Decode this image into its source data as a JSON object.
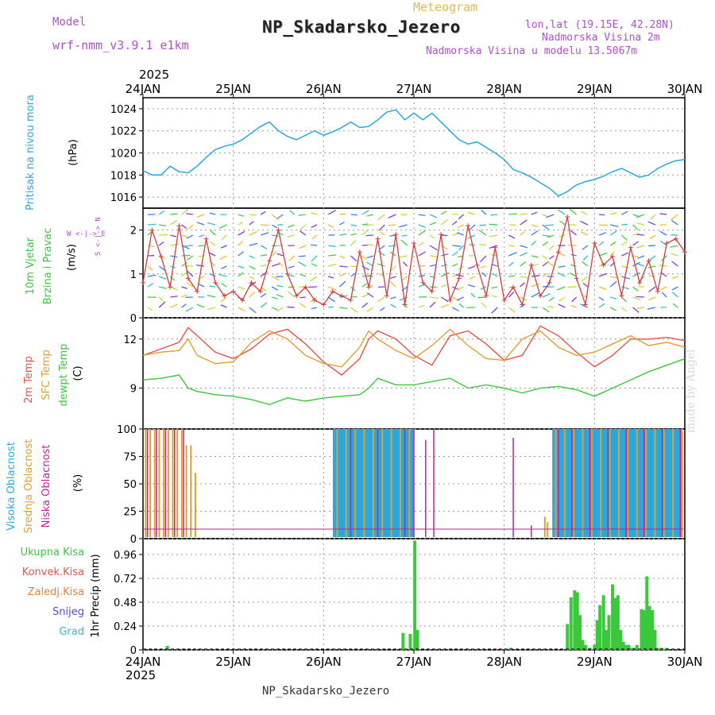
{
  "header": {
    "title": "NP_Skadarsko_Jezero",
    "subtitle": "Meteogram",
    "model_label": "Model",
    "model_value": "wrf-nmm_v3.9.1 e1km",
    "location_line1": "lon,lat (19.15E, 42.28N)",
    "location_line2": "Nadmorska Visina 2m",
    "location_line3": "Nadmorska Visina u modelu 13.5067m",
    "footer": "NP_Skadarsko_Jezero",
    "made_by": "made by Angel",
    "year": "2025"
  },
  "colors": {
    "pressure": "#29a8e0",
    "wind_speed": "#d93c3c",
    "temp2m": "#e8524a",
    "sfc_temp": "#e0a030",
    "dewpt": "#3cc83c",
    "cloud_high": "#29a8e0",
    "cloud_mid": "#e0a030",
    "cloud_low": "#c020a0",
    "precip_total": "#3cc83c",
    "precip_conv": "#e8524a",
    "precip_frozen": "#f08030",
    "snow": "#5050d0",
    "graupel": "#30c0c0",
    "label_purple": "#b04fd6"
  },
  "chart_data": [
    {
      "type": "line",
      "panel": "pressure",
      "ylabel_left": "Pritisak na nivou mora",
      "unit": "(hPa)",
      "ylim": [
        1015,
        1025
      ],
      "yticks": [
        "1016",
        "1018",
        "1020",
        "1022",
        "1024"
      ],
      "x_dates": [
        "24JAN",
        "25JAN",
        "26JAN",
        "27JAN",
        "28JAN",
        "29JAN",
        "30JAN"
      ],
      "x": [
        0,
        0.1,
        0.2,
        0.25,
        0.3,
        0.4,
        0.5,
        0.6,
        0.7,
        0.8,
        0.9,
        1.0,
        1.1,
        1.2,
        1.3,
        1.4,
        1.5,
        1.6,
        1.7,
        1.8,
        1.9,
        2.0,
        2.1,
        2.2,
        2.3,
        2.4,
        2.5,
        2.6,
        2.7,
        2.8,
        2.9,
        3.0,
        3.1,
        3.2,
        3.3,
        3.4,
        3.5,
        3.6,
        3.7,
        3.8,
        3.9,
        4.0,
        4.1,
        4.2,
        4.3,
        4.4,
        4.5,
        4.6,
        4.7,
        4.8,
        4.9,
        5.0,
        5.1,
        5.2,
        5.3,
        5.4,
        5.5,
        5.6,
        5.7,
        5.8,
        5.9,
        6.0
      ],
      "values": [
        1018.4,
        1018.0,
        1018.0,
        1018.4,
        1018.8,
        1018.3,
        1018.2,
        1018.8,
        1019.6,
        1020.3,
        1020.6,
        1020.8,
        1021.2,
        1021.8,
        1022.4,
        1022.8,
        1022.0,
        1021.5,
        1021.2,
        1021.6,
        1022.0,
        1021.6,
        1021.9,
        1022.3,
        1022.8,
        1022.3,
        1022.4,
        1023.0,
        1023.7,
        1023.9,
        1023.0,
        1023.6,
        1023.0,
        1023.6,
        1022.8,
        1022.0,
        1021.2,
        1020.8,
        1021.0,
        1020.5,
        1020.0,
        1019.4,
        1018.5,
        1018.2,
        1017.8,
        1017.3,
        1016.8,
        1016.1,
        1016.5,
        1017.1,
        1017.4,
        1017.6,
        1017.9,
        1018.3,
        1018.6,
        1018.2,
        1017.8,
        1018.0,
        1018.6,
        1019.0,
        1019.3,
        1019.4
      ]
    },
    {
      "type": "line",
      "panel": "wind",
      "ylabel_left": [
        "10m Vjetar",
        "Brzina i Pravac"
      ],
      "unit": "(m/s)",
      "compass_legend": "W <-|-> E",
      "compass_vertical": "S <-|-> N",
      "ylim": [
        0,
        2.5
      ],
      "yticks": [
        "0",
        "1",
        "2"
      ],
      "x": [
        0,
        0.1,
        0.2,
        0.3,
        0.4,
        0.5,
        0.6,
        0.7,
        0.8,
        0.9,
        1.0,
        1.1,
        1.2,
        1.3,
        1.4,
        1.5,
        1.6,
        1.7,
        1.8,
        1.9,
        2.0,
        2.1,
        2.2,
        2.3,
        2.4,
        2.5,
        2.6,
        2.7,
        2.8,
        2.9,
        3.0,
        3.1,
        3.2,
        3.3,
        3.4,
        3.5,
        3.6,
        3.7,
        3.8,
        3.9,
        4.0,
        4.1,
        4.2,
        4.3,
        4.4,
        4.5,
        4.6,
        4.7,
        4.8,
        4.9,
        5.0,
        5.1,
        5.2,
        5.3,
        5.4,
        5.5,
        5.6,
        5.7,
        5.8,
        5.9,
        6.0
      ],
      "values": [
        0.8,
        2.0,
        1.4,
        0.7,
        2.1,
        0.9,
        0.6,
        1.8,
        0.8,
        0.5,
        0.6,
        0.4,
        0.8,
        0.6,
        1.3,
        2.0,
        1.0,
        0.5,
        0.7,
        0.4,
        0.3,
        0.6,
        0.5,
        0.4,
        1.5,
        0.7,
        1.8,
        0.5,
        1.9,
        0.3,
        1.7,
        0.8,
        0.6,
        1.9,
        0.4,
        0.9,
        2.1,
        1.2,
        0.5,
        1.6,
        0.4,
        0.7,
        0.3,
        1.2,
        0.5,
        0.8,
        1.5,
        2.3,
        0.9,
        0.3,
        1.7,
        1.2,
        1.4,
        0.5,
        1.6,
        0.8,
        1.3,
        0.6,
        1.7,
        1.8,
        1.5
      ]
    },
    {
      "type": "line",
      "panel": "temperature",
      "ylabel_left": [
        "2m Temp",
        "SFC Temp",
        "dewpt Temp"
      ],
      "unit": "(C)",
      "ylim": [
        6.5,
        13.3
      ],
      "yticks": [
        "9",
        "12"
      ],
      "x": [
        0,
        0.2,
        0.4,
        0.5,
        0.6,
        0.8,
        1.0,
        1.2,
        1.4,
        1.6,
        1.8,
        2.0,
        2.2,
        2.4,
        2.5,
        2.6,
        2.8,
        3.0,
        3.2,
        3.4,
        3.6,
        3.8,
        4.0,
        4.2,
        4.4,
        4.6,
        4.8,
        5.0,
        5.2,
        5.4,
        5.6,
        5.8,
        6.0
      ],
      "series": [
        {
          "name": "2m Temp",
          "values": [
            11.0,
            11.4,
            11.8,
            12.7,
            12.2,
            11.2,
            10.8,
            11.4,
            12.3,
            12.6,
            11.7,
            10.6,
            9.8,
            10.8,
            12.0,
            12.5,
            12.0,
            11.0,
            10.4,
            12.2,
            12.5,
            11.7,
            10.7,
            11.0,
            12.8,
            12.2,
            11.2,
            10.3,
            11.0,
            12.0,
            12.0,
            12.1,
            11.9
          ]
        },
        {
          "name": "SFC Temp",
          "values": [
            11.0,
            11.2,
            11.3,
            12.0,
            11.0,
            10.5,
            10.6,
            11.8,
            12.5,
            12.0,
            11.0,
            10.5,
            10.3,
            11.5,
            12.5,
            12.0,
            11.3,
            10.8,
            11.6,
            12.6,
            11.6,
            10.8,
            10.7,
            12.0,
            12.5,
            11.5,
            11.0,
            11.2,
            11.7,
            12.2,
            11.6,
            11.8,
            11.5
          ]
        },
        {
          "name": "dewpt Temp",
          "values": [
            9.5,
            9.6,
            9.8,
            9.0,
            8.8,
            8.6,
            8.5,
            8.3,
            8.0,
            8.4,
            8.2,
            8.4,
            8.5,
            8.6,
            9.0,
            9.6,
            9.2,
            9.2,
            9.4,
            9.6,
            9.0,
            9.2,
            9.0,
            8.7,
            9.0,
            9.1,
            8.9,
            8.5,
            9.0,
            9.5,
            10.0,
            10.4,
            10.8
          ]
        }
      ]
    },
    {
      "type": "bar",
      "panel": "cloud",
      "ylabel_left": [
        "Visoka Oblacnost",
        "Srednja Oblacnost",
        "Niska Oblacnost"
      ],
      "unit": "(%)",
      "ylim": [
        0,
        100
      ],
      "yticks": [
        "0",
        "25",
        "50",
        "75",
        "100"
      ],
      "series": [
        {
          "name": "Visoka Oblacnost",
          "x": [
            2.12,
            2.14,
            2.17,
            2.2,
            2.23,
            2.26,
            2.29,
            2.32,
            2.35,
            2.38,
            2.41,
            2.44,
            2.47,
            2.5,
            2.53,
            2.56,
            2.59,
            2.62,
            2.65,
            2.68,
            2.71,
            2.74,
            2.77,
            2.8,
            2.83,
            2.86,
            2.89,
            2.92,
            2.95,
            2.98,
            4.55,
            4.58,
            4.61,
            4.64,
            4.67,
            4.7,
            4.73,
            4.76,
            4.79,
            4.82,
            4.85,
            4.88,
            4.91,
            4.94,
            4.97,
            5.0,
            5.03,
            5.06,
            5.09,
            5.12,
            5.15,
            5.18,
            5.21,
            5.24,
            5.27,
            5.3,
            5.33,
            5.36,
            5.39,
            5.42,
            5.45,
            5.48,
            5.51,
            5.54,
            5.57,
            5.6,
            5.63,
            5.66,
            5.69,
            5.72,
            5.75,
            5.78,
            5.81,
            5.84,
            5.87,
            5.9,
            5.93,
            5.96
          ],
          "values": [
            100,
            100,
            100,
            100,
            100,
            100,
            100,
            100,
            100,
            100,
            100,
            100,
            100,
            100,
            100,
            100,
            100,
            100,
            100,
            100,
            100,
            100,
            100,
            100,
            100,
            100,
            100,
            100,
            100,
            100,
            100,
            100,
            100,
            100,
            100,
            100,
            100,
            100,
            100,
            100,
            100,
            100,
            100,
            100,
            100,
            100,
            100,
            100,
            100,
            100,
            100,
            100,
            100,
            100,
            100,
            100,
            100,
            100,
            100,
            100,
            100,
            100,
            100,
            100,
            100,
            100,
            100,
            100,
            100,
            100,
            100,
            100,
            100,
            100,
            100,
            100,
            100,
            100
          ]
        },
        {
          "name": "Srednja Oblacnost",
          "x": [
            0.03,
            0.08,
            0.13,
            0.18,
            0.23,
            0.28,
            0.33,
            0.38,
            0.43,
            0.48,
            0.53,
            0.58,
            2.15,
            2.25,
            2.35,
            2.45,
            2.55,
            2.65,
            2.75,
            2.85,
            2.95,
            4.45,
            4.48,
            4.57,
            4.67,
            4.77,
            4.87,
            4.97,
            5.07,
            5.17,
            5.27,
            5.37,
            5.47,
            5.57,
            5.67,
            5.77,
            5.87,
            5.97
          ],
          "values": [
            100,
            100,
            100,
            100,
            100,
            100,
            100,
            100,
            100,
            85,
            85,
            60,
            100,
            100,
            100,
            100,
            100,
            100,
            100,
            100,
            100,
            20,
            15,
            100,
            100,
            100,
            100,
            100,
            100,
            100,
            100,
            100,
            100,
            100,
            100,
            100,
            100,
            100
          ]
        },
        {
          "name": "Niska Oblacnost",
          "x": [
            0.05,
            0.15,
            0.25,
            0.35,
            0.45,
            2.3,
            2.6,
            2.9,
            3.0,
            3.13,
            3.22,
            4.1,
            4.3,
            4.6,
            4.75,
            4.95,
            5.15,
            5.35,
            5.55,
            5.75,
            5.95
          ],
          "values": [
            100,
            100,
            100,
            100,
            100,
            100,
            100,
            100,
            100,
            90,
            100,
            92,
            12,
            100,
            100,
            100,
            100,
            100,
            100,
            100,
            100
          ]
        }
      ]
    },
    {
      "type": "bar",
      "panel": "precip",
      "ylabel_left": [
        "Ukupna Kisa",
        "Konvek.Kisa",
        "Zaledj.Kisa",
        "Snijeg",
        "Grad"
      ],
      "ylabel_axis": "1hr Precip (mm)",
      "ylim": [
        0,
        1.12
      ],
      "yticks": [
        "0",
        "0.24",
        "0.48",
        "0.72",
        "0.96"
      ],
      "bottom_dates": [
        "24JAN",
        "25JAN",
        "26JAN",
        "27JAN",
        "28JAN",
        "29JAN",
        "30JAN"
      ],
      "series": [
        {
          "name": "Ukupna Kisa",
          "x": [
            0.27,
            2.88,
            2.96,
            3.01,
            3.04,
            4.07,
            4.7,
            4.74,
            4.78,
            4.81,
            4.84,
            4.87,
            4.9,
            4.95,
            5.0,
            5.03,
            5.06,
            5.1,
            5.13,
            5.16,
            5.2,
            5.23,
            5.26,
            5.29,
            5.32,
            5.35,
            5.38,
            5.41,
            5.44,
            5.47,
            5.52,
            5.55,
            5.58,
            5.61,
            5.64,
            5.67,
            5.7,
            5.74,
            5.77,
            5.8
          ],
          "values": [
            0.04,
            0.17,
            0.16,
            1.1,
            0.2,
            0.02,
            0.26,
            0.53,
            0.6,
            0.58,
            0.35,
            0.1,
            0.05,
            0.02,
            0.05,
            0.3,
            0.45,
            0.55,
            0.2,
            0.35,
            0.66,
            0.52,
            0.55,
            0.2,
            0.08,
            0.05,
            0.05,
            0.02,
            0.02,
            0.05,
            0.41,
            0.4,
            0.74,
            0.44,
            0.4,
            0.2,
            0.02,
            0.02,
            0.01,
            0.02
          ]
        }
      ]
    }
  ]
}
